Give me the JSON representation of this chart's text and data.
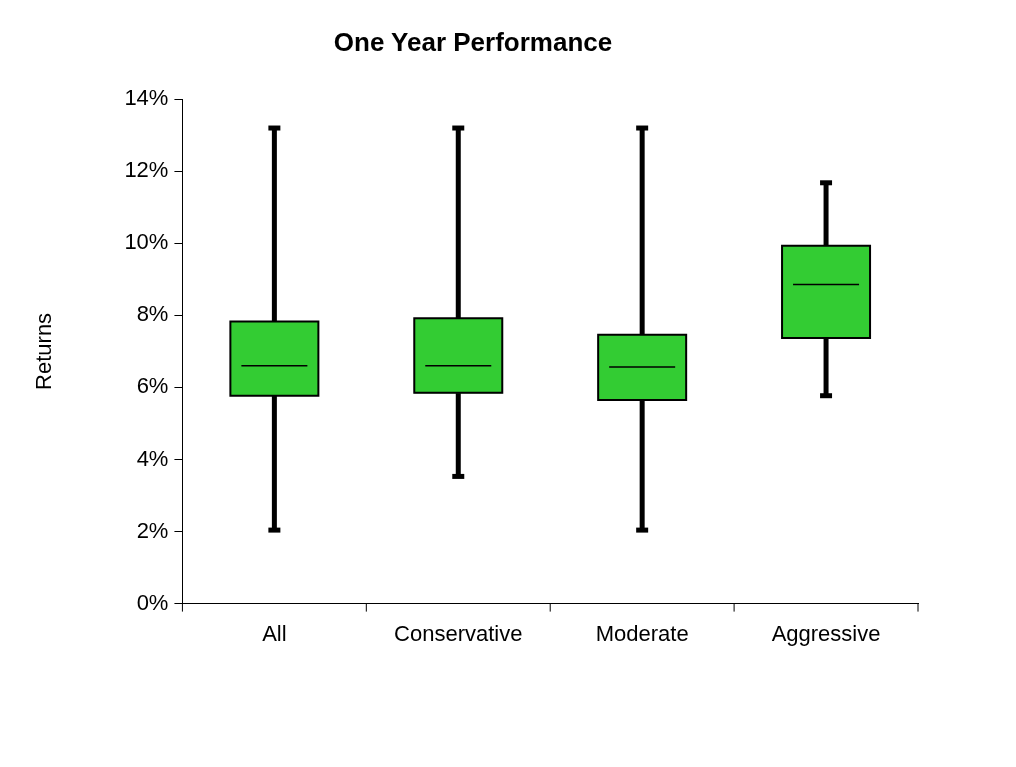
{
  "chart_data": {
    "type": "box",
    "title": "One Year Performance",
    "ylabel": "Returns",
    "categories": [
      "All",
      "Conservative",
      "Moderate",
      "Aggressive"
    ],
    "boxes": [
      {
        "low": 2.04,
        "q1": 5.77,
        "median": 6.6,
        "q3": 7.83,
        "high": 13.2
      },
      {
        "low": 3.53,
        "q1": 5.85,
        "median": 6.6,
        "q3": 7.92,
        "high": 13.2
      },
      {
        "low": 2.04,
        "q1": 5.65,
        "median": 6.57,
        "q3": 7.46,
        "high": 13.2
      },
      {
        "low": 5.77,
        "q1": 7.37,
        "median": 8.86,
        "q3": 9.93,
        "high": 11.68
      }
    ],
    "color": "#33cc33",
    "ylim": [
      0,
      14
    ],
    "yticks": [
      {
        "value": 0,
        "label": "0%"
      },
      {
        "value": 2,
        "label": "2%"
      },
      {
        "value": 4,
        "label": "4%"
      },
      {
        "value": 6,
        "label": "6%"
      },
      {
        "value": 8,
        "label": "8%"
      },
      {
        "value": 10,
        "label": "10%"
      },
      {
        "value": 12,
        "label": "12%"
      },
      {
        "value": 14,
        "label": "14%"
      }
    ],
    "grid": false,
    "legend": false
  }
}
